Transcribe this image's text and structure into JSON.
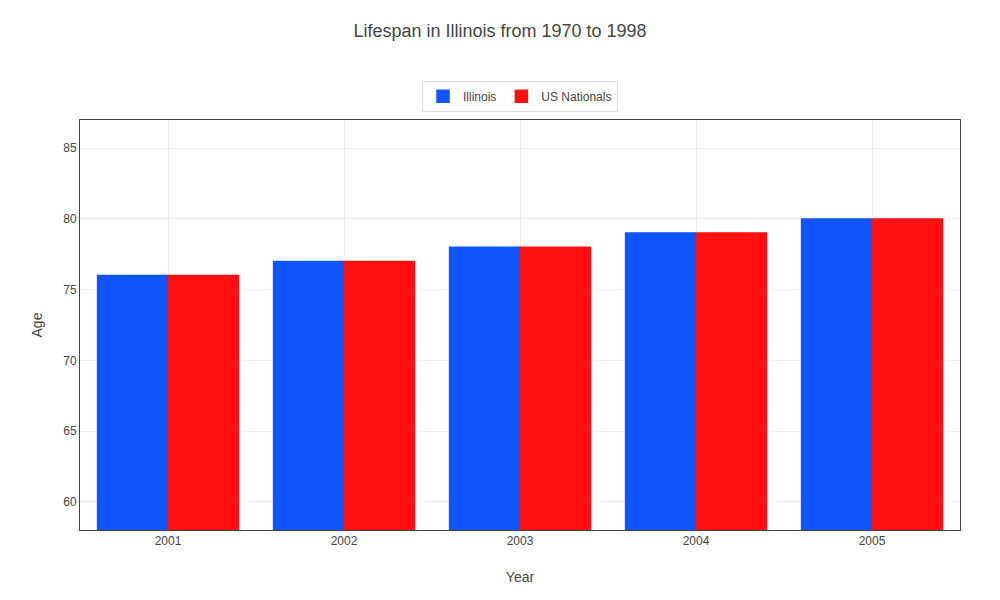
{
  "chart_data": {
    "type": "bar",
    "title": "Lifespan in Illinois from 1970 to 1998",
    "xlabel": "Year",
    "ylabel": "Age",
    "categories": [
      "2001",
      "2002",
      "2003",
      "2004",
      "2005"
    ],
    "series": [
      {
        "name": "Illinois",
        "color": "#1155ff",
        "values": [
          76.0,
          77.0,
          78.0,
          79.0,
          80.0
        ]
      },
      {
        "name": "US Nationals",
        "color": "#ff1111",
        "values": [
          76.0,
          77.0,
          78.0,
          79.0,
          80.0
        ]
      }
    ],
    "ylim": [
      58,
      87
    ],
    "yticks": [
      60,
      65,
      70,
      75,
      80,
      85
    ],
    "grid": true,
    "legend": "top"
  }
}
